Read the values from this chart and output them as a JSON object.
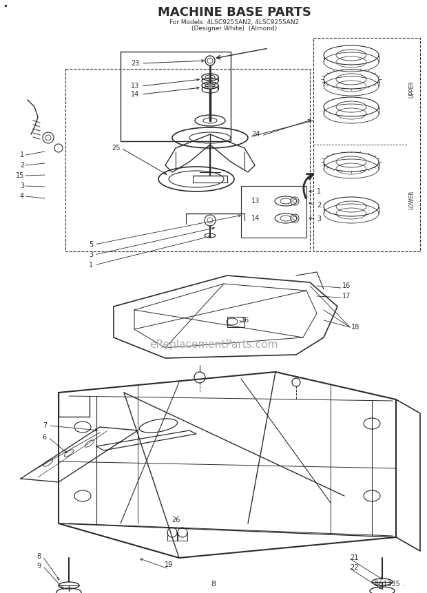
{
  "title": "MACHINE BASE PARTS",
  "subtitle1": "For Models: 4LSC9255AN2, 4LSC9255AN2",
  "subtitle2": "(Designer White)  (Almond)",
  "page_num": "8",
  "doc_num": "861335 .",
  "watermark": "eReplacementParts.com",
  "bg_color": "#ffffff",
  "line_color": "#2a2a2a",
  "gray_color": "#888888"
}
